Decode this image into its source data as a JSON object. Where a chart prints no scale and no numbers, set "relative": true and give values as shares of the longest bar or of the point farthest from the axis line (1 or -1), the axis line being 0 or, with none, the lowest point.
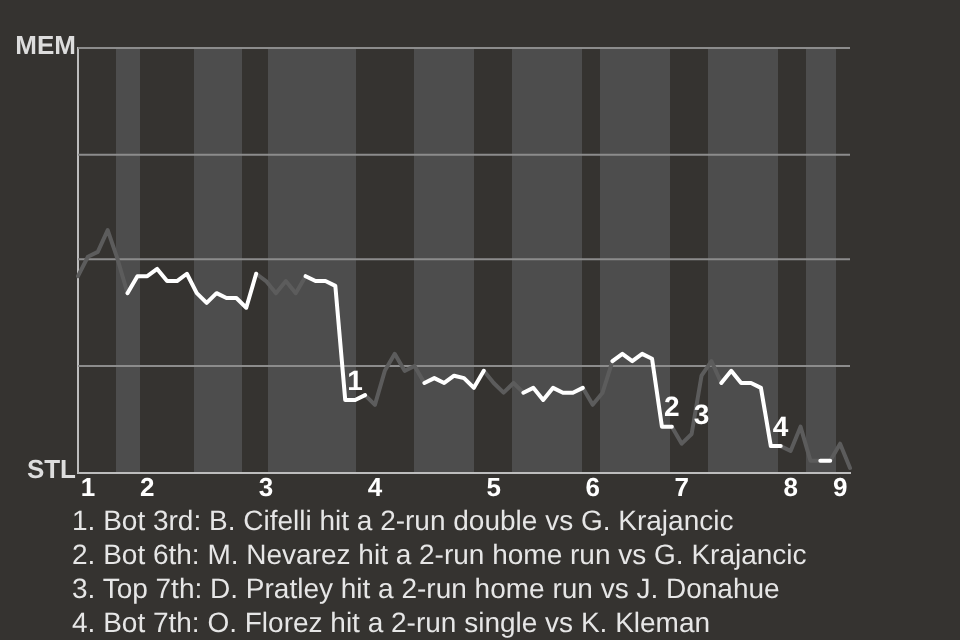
{
  "chart_data": {
    "type": "line",
    "relative": true,
    "categories": [
      null,
      "1",
      null,
      null,
      null,
      null,
      null,
      "2",
      null,
      null,
      null,
      null,
      null,
      null,
      null,
      null,
      null,
      null,
      null,
      "3",
      null,
      null,
      null,
      null,
      null,
      null,
      null,
      null,
      null,
      null,
      "4",
      null,
      null,
      null,
      null,
      null,
      null,
      null,
      null,
      null,
      null,
      null,
      "5",
      null,
      null,
      null,
      null,
      null,
      null,
      null,
      null,
      null,
      "6",
      null,
      null,
      null,
      null,
      null,
      null,
      null,
      null,
      "7",
      null,
      null,
      null,
      null,
      null,
      null,
      null,
      null,
      null,
      null,
      "8",
      null,
      null,
      null,
      null,
      "9",
      null
    ],
    "series": [
      {
        "color": "#5c5c5c",
        "values": [
          0.81,
          0.89,
          0.91,
          1,
          0.88,
          0.74,
          null,
          null,
          null,
          null,
          null,
          null,
          null,
          null,
          null,
          null,
          null,
          null,
          0.82,
          0.79,
          0.74,
          0.79,
          0.74,
          0.81,
          null,
          null,
          null,
          null,
          null,
          0.32,
          0.28,
          0.42,
          0.49,
          0.42,
          0.44,
          0.37,
          null,
          null,
          null,
          null,
          null,
          0.42,
          0.37,
          0.33,
          0.37,
          0.33,
          null,
          null,
          null,
          null,
          null,
          0.35,
          0.28,
          0.33,
          0.46,
          null,
          null,
          null,
          null,
          null,
          0.19,
          0.12,
          0.16,
          0.4,
          0.46,
          0.37,
          null,
          null,
          null,
          null,
          null,
          0.11,
          0.09,
          0.19,
          0.05,
          0.05,
          0.05,
          0.12,
          0.02
        ]
      },
      {
        "color": "#ffffff",
        "values": [
          null,
          null,
          null,
          null,
          null,
          0.74,
          0.81,
          0.81,
          0.84,
          0.79,
          0.79,
          0.82,
          0.74,
          0.7,
          0.74,
          0.72,
          0.72,
          0.68,
          0.82,
          null,
          null,
          null,
          null,
          0.81,
          0.79,
          0.79,
          0.77,
          0.3,
          0.3,
          0.32,
          null,
          null,
          null,
          null,
          null,
          0.37,
          0.39,
          0.37,
          0.4,
          0.39,
          0.35,
          0.42,
          null,
          null,
          null,
          0.33,
          0.35,
          0.3,
          0.35,
          0.33,
          0.33,
          0.35,
          null,
          null,
          0.46,
          0.49,
          0.46,
          0.49,
          0.47,
          0.19,
          0.19,
          null,
          null,
          null,
          null,
          0.37,
          0.42,
          0.37,
          0.37,
          0.35,
          0.11,
          0.11,
          null,
          null,
          null,
          0.05,
          0.05,
          null,
          null
        ]
      }
    ],
    "ref_lines": [
      {
        "axis": "y",
        "value": 0.44,
        "color": "#8c8c8c"
      },
      {
        "axis": "y",
        "value": 0.88,
        "color": "#8c8c8c"
      },
      {
        "axis": "y",
        "value": 1.31,
        "color": "#8c8c8c"
      },
      {
        "axis": "y",
        "value": 1.75,
        "color": "#8c8c8c"
      }
    ],
    "marker": "none",
    "annotations": [
      "MEM",
      "STL",
      {
        "text": "1",
        "y": 0.3
      },
      {
        "text": "2",
        "y": 0.19
      },
      {
        "text": "3",
        "y": 0.16
      },
      {
        "text": "4",
        "y": 0.11
      },
      "1. Bot 3rd: B. Cifelli hit a 2-run double vs G. Krajancic",
      "2. Bot 6th: M. Nevarez hit a 2-run home run vs G. Krajancic",
      "3. Top 7th: D. Pratley hit a 2-run home run vs J. Donahue",
      "4. Bot 7th: O. Florez hit a 2-run single vs K. Kleman"
    ]
  }
}
